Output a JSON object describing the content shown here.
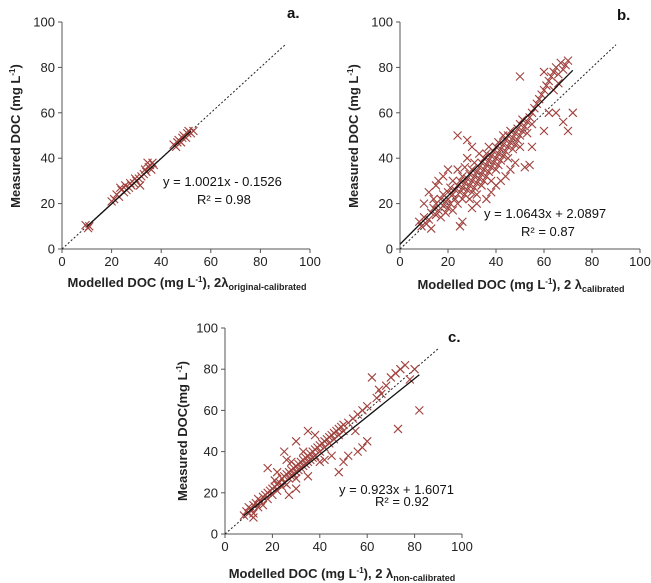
{
  "chart_data": [
    {
      "type": "scatter",
      "panel_label": "a.",
      "xlim": [
        0,
        100
      ],
      "ylim": [
        0,
        100
      ],
      "xticks": [
        "0",
        "20",
        "40",
        "60",
        "80",
        "100"
      ],
      "yticks": [
        "0",
        "20",
        "40",
        "60",
        "80",
        "100"
      ],
      "xlabel": {
        "main": "Modelled DOC (mg L",
        "sup": "-1",
        "mid": "), 2λ",
        "sub": "original-calibrated"
      },
      "ylabel": {
        "main": "Measured DOC (mg L",
        "sup": "-1",
        "end": ")"
      },
      "equation": "y = 1.0021x - 0.1526",
      "r2": "R² = 0.98",
      "trendline": {
        "slope": 1.0021,
        "intercept": -0.1526,
        "x_range": [
          10,
          52
        ]
      },
      "one_to_one": true,
      "marker_color": "#A0403C",
      "points": [
        [
          9.5,
          10.5
        ],
        [
          10.5,
          9.2
        ],
        [
          11,
          10
        ],
        [
          20,
          21
        ],
        [
          21,
          22
        ],
        [
          22,
          24
        ],
        [
          23,
          23
        ],
        [
          23.5,
          27
        ],
        [
          24,
          26
        ],
        [
          25,
          25
        ],
        [
          25.5,
          28
        ],
        [
          26,
          26
        ],
        [
          27,
          27
        ],
        [
          27.5,
          29
        ],
        [
          28,
          28
        ],
        [
          29,
          29
        ],
        [
          29.5,
          31
        ],
        [
          30,
          30
        ],
        [
          31,
          31
        ],
        [
          31.5,
          28
        ],
        [
          32,
          32
        ],
        [
          33,
          33
        ],
        [
          33.5,
          35
        ],
        [
          34,
          34
        ],
        [
          34.5,
          38
        ],
        [
          35,
          36
        ],
        [
          35.5,
          37
        ],
        [
          36,
          35
        ],
        [
          36.5,
          38
        ],
        [
          37,
          37
        ],
        [
          45,
          46
        ],
        [
          46,
          45
        ],
        [
          46.5,
          47
        ],
        [
          47,
          48
        ],
        [
          48,
          47
        ],
        [
          48.5,
          49
        ],
        [
          49,
          50
        ],
        [
          50,
          49
        ],
        [
          50.5,
          51
        ],
        [
          51,
          52
        ],
        [
          52,
          51
        ],
        [
          53,
          52
        ]
      ]
    },
    {
      "type": "scatter",
      "panel_label": "b.",
      "xlim": [
        0,
        100
      ],
      "ylim": [
        0,
        100
      ],
      "xticks": [
        "0",
        "20",
        "40",
        "60",
        "80",
        "100"
      ],
      "yticks": [
        "0",
        "20",
        "40",
        "60",
        "80",
        "100"
      ],
      "xlabel": {
        "main": "Modelled DOC (mg L",
        "sup": "-1",
        "mid": "), 2 λ",
        "sub": "calibrated"
      },
      "ylabel": {
        "main": "Measured DOC (mg L",
        "sup": "-1",
        "end": ")"
      },
      "equation": "y = 1.0643x + 2.0897",
      "r2": "R² = 0.87",
      "trendline": {
        "slope": 1.0643,
        "intercept": 2.0897,
        "x_range": [
          0,
          72
        ]
      },
      "one_to_one": true,
      "marker_color": "#A0403C",
      "points": [
        [
          8,
          12
        ],
        [
          9,
          10
        ],
        [
          10,
          14
        ],
        [
          11,
          11
        ],
        [
          12,
          13
        ],
        [
          13,
          16
        ],
        [
          13,
          9
        ],
        [
          14,
          18
        ],
        [
          15,
          15
        ],
        [
          15,
          20
        ],
        [
          16,
          17
        ],
        [
          17,
          22
        ],
        [
          17,
          14
        ],
        [
          18,
          19
        ],
        [
          18,
          24
        ],
        [
          19,
          21
        ],
        [
          19,
          16
        ],
        [
          20,
          25
        ],
        [
          20,
          22
        ],
        [
          20,
          18
        ],
        [
          21,
          27
        ],
        [
          21,
          20
        ],
        [
          22,
          24
        ],
        [
          22,
          30
        ],
        [
          22,
          17
        ],
        [
          23,
          26
        ],
        [
          23,
          22
        ],
        [
          24,
          28
        ],
        [
          24,
          35
        ],
        [
          24,
          20
        ],
        [
          25,
          30
        ],
        [
          25,
          25
        ],
        [
          26,
          27
        ],
        [
          26,
          32
        ],
        [
          26,
          22
        ],
        [
          27,
          29
        ],
        [
          27,
          36
        ],
        [
          27,
          24
        ],
        [
          28,
          31
        ],
        [
          28,
          26
        ],
        [
          28,
          40
        ],
        [
          29,
          33
        ],
        [
          29,
          28
        ],
        [
          29,
          22
        ],
        [
          30,
          35
        ],
        [
          30,
          30
        ],
        [
          30,
          25
        ],
        [
          31,
          32
        ],
        [
          31,
          38
        ],
        [
          31,
          27
        ],
        [
          32,
          34
        ],
        [
          32,
          29
        ],
        [
          32,
          24
        ],
        [
          33,
          36
        ],
        [
          33,
          31
        ],
        [
          33,
          42
        ],
        [
          34,
          38
        ],
        [
          34,
          33
        ],
        [
          34,
          28
        ],
        [
          35,
          40
        ],
        [
          35,
          35
        ],
        [
          35,
          30
        ],
        [
          36,
          37
        ],
        [
          36,
          42
        ],
        [
          36,
          32
        ],
        [
          37,
          39
        ],
        [
          37,
          34
        ],
        [
          37,
          45
        ],
        [
          38,
          41
        ],
        [
          38,
          36
        ],
        [
          38,
          30
        ],
        [
          39,
          43
        ],
        [
          39,
          38
        ],
        [
          40,
          45
        ],
        [
          40,
          40
        ],
        [
          40,
          35
        ],
        [
          41,
          42
        ],
        [
          41,
          47
        ],
        [
          41,
          37
        ],
        [
          42,
          44
        ],
        [
          42,
          39
        ],
        [
          43,
          46
        ],
        [
          43,
          41
        ],
        [
          43,
          50
        ],
        [
          44,
          48
        ],
        [
          44,
          43
        ],
        [
          45,
          50
        ],
        [
          45,
          45
        ],
        [
          45,
          40
        ],
        [
          46,
          47
        ],
        [
          46,
          52
        ],
        [
          47,
          49
        ],
        [
          47,
          44
        ],
        [
          48,
          51
        ],
        [
          48,
          46
        ],
        [
          49,
          53
        ],
        [
          49,
          48
        ],
        [
          50,
          55
        ],
        [
          50,
          50
        ],
        [
          50,
          45
        ],
        [
          51,
          52
        ],
        [
          51,
          57
        ],
        [
          52,
          54
        ],
        [
          52,
          36
        ],
        [
          53,
          56
        ],
        [
          53,
          51
        ],
        [
          54,
          58
        ],
        [
          54,
          37
        ],
        [
          55,
          60
        ],
        [
          55,
          55
        ],
        [
          56,
          62
        ],
        [
          57,
          64
        ],
        [
          58,
          66
        ],
        [
          59,
          68
        ],
        [
          60,
          70
        ],
        [
          61,
          72
        ],
        [
          62,
          74
        ],
        [
          63,
          76
        ],
        [
          64,
          78
        ],
        [
          65,
          80
        ],
        [
          66,
          77
        ],
        [
          67,
          82
        ],
        [
          68,
          79
        ],
        [
          69,
          81
        ],
        [
          70,
          83
        ],
        [
          66,
          73
        ],
        [
          64,
          70
        ],
        [
          62,
          60
        ],
        [
          60,
          52
        ],
        [
          55,
          45
        ],
        [
          50,
          76
        ],
        [
          60,
          78
        ],
        [
          65,
          60
        ],
        [
          70,
          52
        ],
        [
          72,
          60
        ],
        [
          68,
          56
        ],
        [
          24,
          50
        ],
        [
          28,
          48
        ],
        [
          30,
          45
        ],
        [
          18,
          32
        ],
        [
          20,
          35
        ],
        [
          16,
          30
        ],
        [
          15,
          28
        ],
        [
          12,
          25
        ],
        [
          14,
          22
        ],
        [
          10,
          20
        ],
        [
          26,
          12
        ],
        [
          25,
          10
        ],
        [
          30,
          18
        ],
        [
          32,
          20
        ],
        [
          38,
          25
        ],
        [
          36,
          22
        ],
        [
          40,
          28
        ],
        [
          42,
          30
        ],
        [
          44,
          32
        ],
        [
          46,
          35
        ],
        [
          48,
          38
        ]
      ]
    },
    {
      "type": "scatter",
      "panel_label": "c.",
      "xlim": [
        0,
        100
      ],
      "ylim": [
        0,
        100
      ],
      "xticks": [
        "0",
        "20",
        "40",
        "60",
        "80",
        "100"
      ],
      "yticks": [
        "0",
        "20",
        "40",
        "60",
        "80",
        "100"
      ],
      "xlabel": {
        "main": "Modelled DOC (mg L",
        "sup": "-1",
        "mid": "), 2 λ",
        "sub": "non-calibrated"
      },
      "ylabel": {
        "main": "Measured DOC(mg L",
        "sup": "-1",
        "end": ")"
      },
      "equation": "y = 0.923x + 1.6071",
      "r2": "R² = 0.92",
      "trendline": {
        "slope": 0.923,
        "intercept": 1.6071,
        "x_range": [
          8,
          82
        ]
      },
      "one_to_one": true,
      "marker_color": "#A0403C",
      "points": [
        [
          8,
          9
        ],
        [
          9,
          11
        ],
        [
          10,
          10
        ],
        [
          10,
          13
        ],
        [
          11,
          12
        ],
        [
          12,
          14
        ],
        [
          12,
          10
        ],
        [
          13,
          15
        ],
        [
          14,
          13
        ],
        [
          14,
          17
        ],
        [
          15,
          16
        ],
        [
          16,
          18
        ],
        [
          16,
          14
        ],
        [
          17,
          19
        ],
        [
          18,
          20
        ],
        [
          18,
          17
        ],
        [
          19,
          21
        ],
        [
          20,
          22
        ],
        [
          20,
          19
        ],
        [
          21,
          23
        ],
        [
          21,
          26
        ],
        [
          22,
          24
        ],
        [
          22,
          21
        ],
        [
          23,
          25
        ],
        [
          24,
          27
        ],
        [
          24,
          23
        ],
        [
          25,
          28
        ],
        [
          25,
          25
        ],
        [
          26,
          29
        ],
        [
          26,
          24
        ],
        [
          27,
          30
        ],
        [
          27,
          27
        ],
        [
          28,
          31
        ],
        [
          28,
          28
        ],
        [
          29,
          32
        ],
        [
          29,
          29
        ],
        [
          30,
          33
        ],
        [
          30,
          30
        ],
        [
          30,
          27
        ],
        [
          31,
          34
        ],
        [
          31,
          31
        ],
        [
          32,
          35
        ],
        [
          32,
          32
        ],
        [
          33,
          36
        ],
        [
          33,
          33
        ],
        [
          34,
          37
        ],
        [
          34,
          34
        ],
        [
          35,
          38
        ],
        [
          35,
          35
        ],
        [
          36,
          39
        ],
        [
          36,
          36
        ],
        [
          37,
          40
        ],
        [
          37,
          37
        ],
        [
          38,
          41
        ],
        [
          38,
          38
        ],
        [
          39,
          42
        ],
        [
          40,
          43
        ],
        [
          40,
          40
        ],
        [
          41,
          44
        ],
        [
          42,
          45
        ],
        [
          42,
          42
        ],
        [
          43,
          46
        ],
        [
          44,
          47
        ],
        [
          44,
          44
        ],
        [
          45,
          48
        ],
        [
          46,
          49
        ],
        [
          46,
          46
        ],
        [
          47,
          50
        ],
        [
          48,
          51
        ],
        [
          48,
          48
        ],
        [
          49,
          52
        ],
        [
          50,
          53
        ],
        [
          50,
          50
        ],
        [
          52,
          54
        ],
        [
          54,
          56
        ],
        [
          55,
          50
        ],
        [
          56,
          58
        ],
        [
          58,
          60
        ],
        [
          60,
          62
        ],
        [
          62,
          76
        ],
        [
          64,
          66
        ],
        [
          65,
          70
        ],
        [
          66,
          68
        ],
        [
          68,
          72
        ],
        [
          70,
          76
        ],
        [
          72,
          78
        ],
        [
          74,
          80
        ],
        [
          76,
          82
        ],
        [
          78,
          75
        ],
        [
          80,
          80
        ],
        [
          82,
          60
        ],
        [
          73,
          51
        ],
        [
          60,
          45
        ],
        [
          58,
          42
        ],
        [
          56,
          40
        ],
        [
          52,
          38
        ],
        [
          50,
          35
        ],
        [
          48,
          30
        ],
        [
          18,
          32
        ],
        [
          22,
          30
        ],
        [
          25,
          40
        ],
        [
          26,
          36
        ],
        [
          30,
          45
        ],
        [
          35,
          50
        ],
        [
          38,
          48
        ],
        [
          33,
          40
        ],
        [
          28,
          35
        ],
        [
          40,
          35
        ],
        [
          45,
          38
        ],
        [
          42,
          36
        ],
        [
          35,
          28
        ],
        [
          30,
          22
        ],
        [
          27,
          19
        ],
        [
          12,
          8
        ]
      ]
    }
  ]
}
